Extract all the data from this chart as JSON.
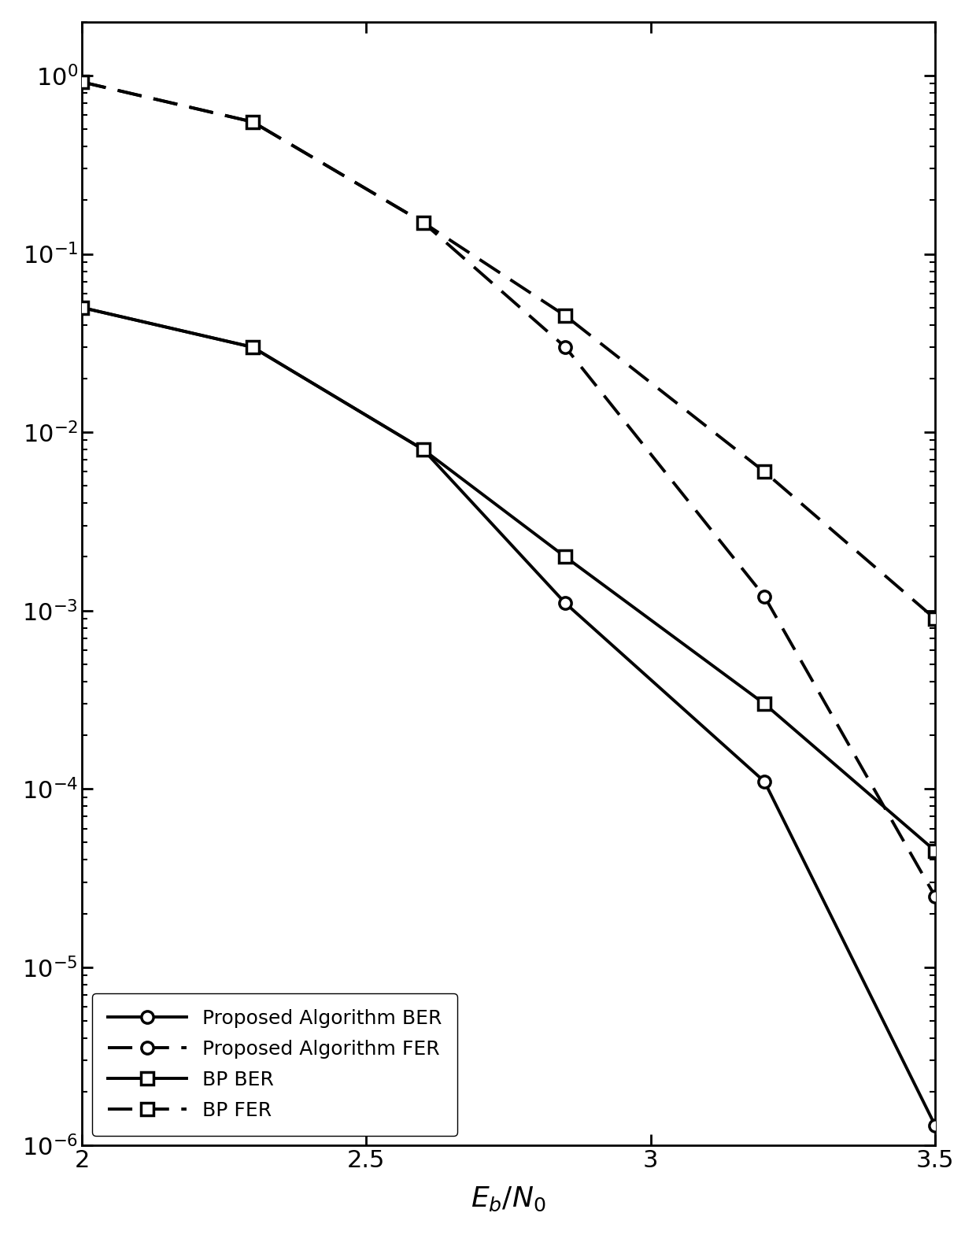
{
  "proposed_ber_x": [
    2.0,
    2.3,
    2.6,
    2.85,
    3.2,
    3.5
  ],
  "proposed_ber_y": [
    0.05,
    0.03,
    0.008,
    0.0011,
    0.00011,
    1.3e-06
  ],
  "proposed_fer_x": [
    2.0,
    2.3,
    2.6,
    2.85,
    3.2,
    3.5
  ],
  "proposed_fer_y": [
    0.92,
    0.55,
    0.15,
    0.03,
    0.0012,
    2.5e-05
  ],
  "bp_ber_x": [
    2.0,
    2.3,
    2.6,
    2.85,
    3.2,
    3.5
  ],
  "bp_ber_y": [
    0.05,
    0.03,
    0.008,
    0.002,
    0.0003,
    4.5e-05
  ],
  "bp_fer_x": [
    2.0,
    2.3,
    2.6,
    2.85,
    3.2,
    3.5
  ],
  "bp_fer_y": [
    0.92,
    0.55,
    0.15,
    0.045,
    0.006,
    0.0009
  ],
  "xlabel": "$E_b/N_0$",
  "ylim_bottom": 1e-06,
  "ylim_top": 2.0,
  "xlim_left": 2.0,
  "xlim_right": 3.5,
  "xtick_values": [
    2.0,
    2.5,
    3.0,
    3.5
  ],
  "xtick_labels": [
    "2",
    "2.5",
    "3",
    "3.5"
  ],
  "legend_loc": "lower left",
  "line_color": "black",
  "linewidth_thick": 2.8,
  "markersize": 11,
  "legend_fontsize": 18,
  "tick_labelsize": 22,
  "xlabel_fontsize": 26
}
